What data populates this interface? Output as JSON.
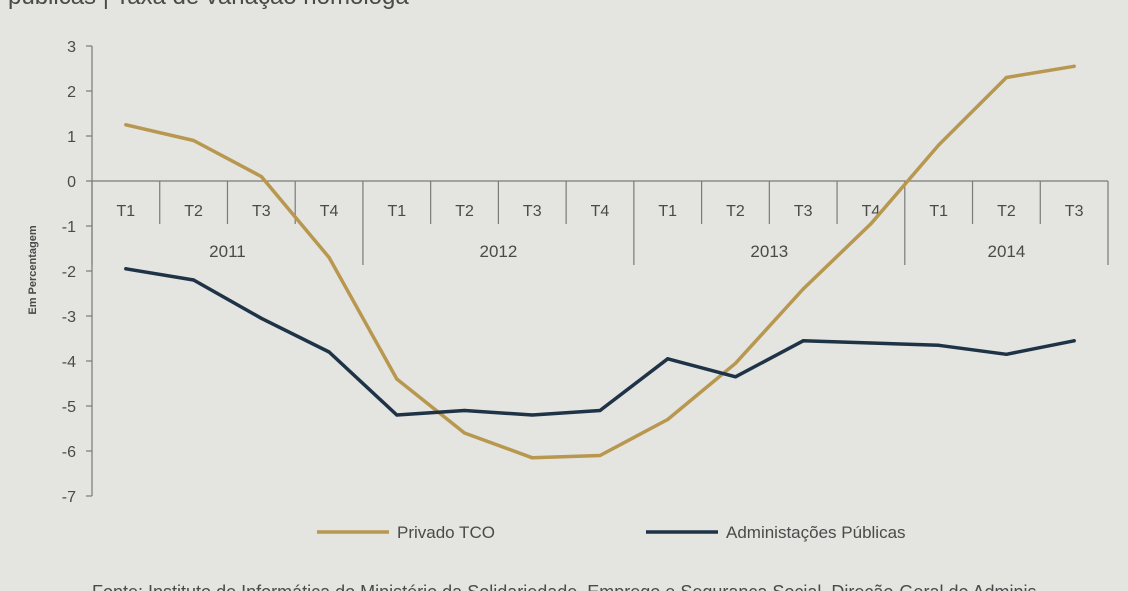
{
  "header_fragment": "públicas | Taxa de variação homóloga",
  "footer_fragment": "Fonte: Instituto de Informática do Ministério da Solidariedade, Emprego e Segurança Social, Direção-Geral do Adminis",
  "chart_data": {
    "type": "line",
    "ylabel": "Em Percentagem",
    "ylim": [
      -7,
      3
    ],
    "yticks": [
      3,
      2,
      1,
      0,
      -1,
      -2,
      -3,
      -4,
      -5,
      -6,
      -7
    ],
    "grid": false,
    "legend_position": "bottom",
    "categories": [
      "T1",
      "T2",
      "T3",
      "T4",
      "T1",
      "T2",
      "T3",
      "T4",
      "T1",
      "T2",
      "T3",
      "T4",
      "T1",
      "T2",
      "T3"
    ],
    "years": [
      {
        "label": "2011",
        "start": 0,
        "count": 4
      },
      {
        "label": "2012",
        "start": 4,
        "count": 4
      },
      {
        "label": "2013",
        "start": 8,
        "count": 4
      },
      {
        "label": "2014",
        "start": 12,
        "count": 3
      }
    ],
    "series": [
      {
        "name": "Privado TCO",
        "color": "#b8974f",
        "values": [
          1.25,
          0.9,
          0.1,
          -1.7,
          -4.4,
          -5.6,
          -6.15,
          -6.1,
          -5.3,
          -4.05,
          -2.4,
          -0.95,
          0.8,
          2.3,
          2.55
        ]
      },
      {
        "name": "Administações Públicas",
        "color": "#1f3347",
        "values": [
          -1.95,
          -2.2,
          -3.05,
          -3.8,
          -5.2,
          -5.1,
          -5.2,
          -5.1,
          -3.95,
          -4.35,
          -3.55,
          -3.6,
          -3.65,
          -3.85,
          -3.55
        ]
      }
    ]
  }
}
